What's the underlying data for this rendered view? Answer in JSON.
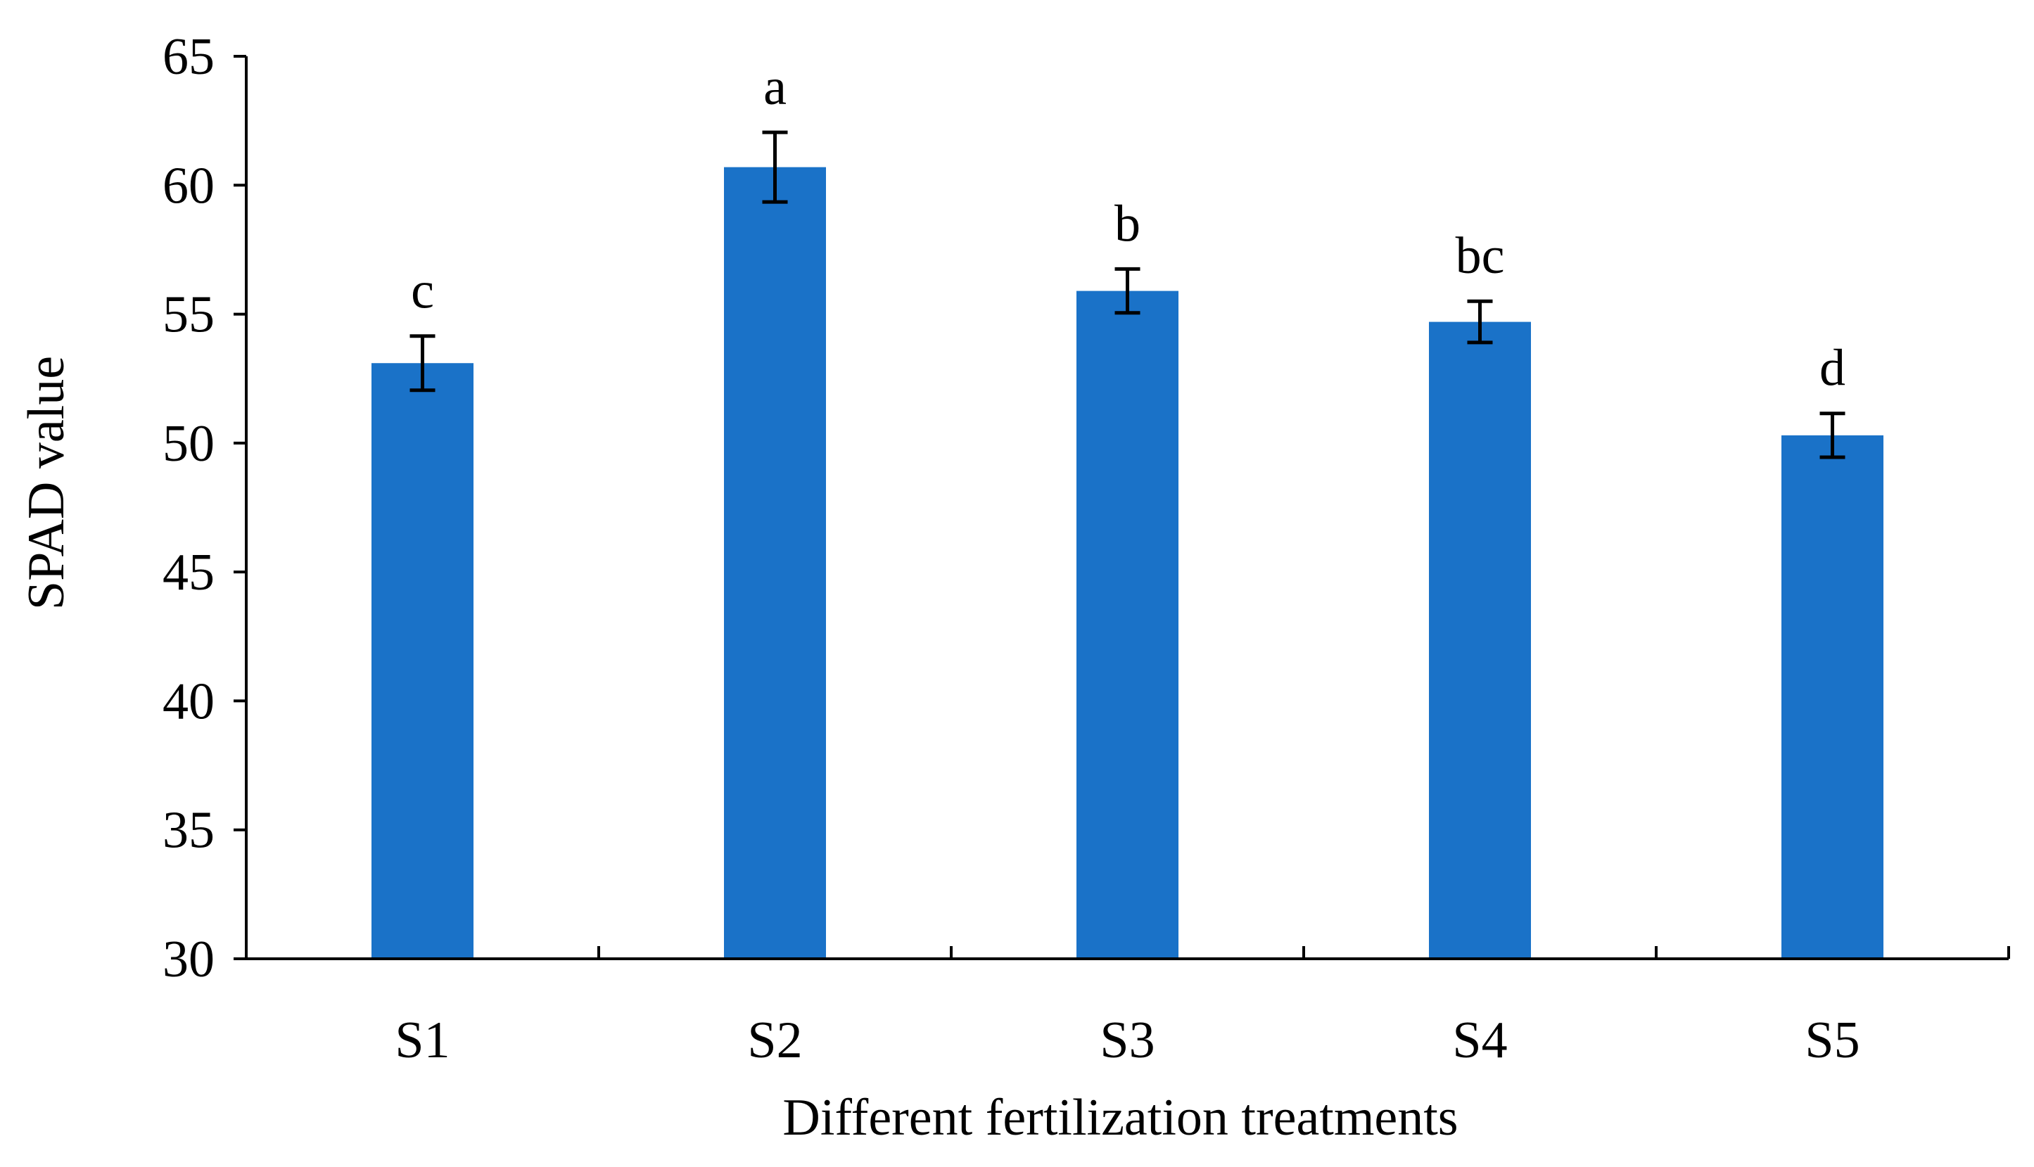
{
  "chart_data": {
    "type": "bar",
    "title": "",
    "xlabel": "Different fertilization treatments",
    "ylabel": "SPAD value",
    "ylim": [
      30,
      65
    ],
    "yticks": [
      30,
      35,
      40,
      45,
      50,
      55,
      60,
      65
    ],
    "grid": false,
    "legend": "none",
    "categories": [
      "S1",
      "S2",
      "S3",
      "S4",
      "S5"
    ],
    "values": [
      53.1,
      60.7,
      55.9,
      54.7,
      50.3
    ],
    "errors": [
      1.05,
      1.35,
      0.85,
      0.8,
      0.85
    ],
    "significance_letters": [
      "c",
      "a",
      "b",
      "bc",
      "d"
    ],
    "bar_color": "#1a72c8"
  }
}
